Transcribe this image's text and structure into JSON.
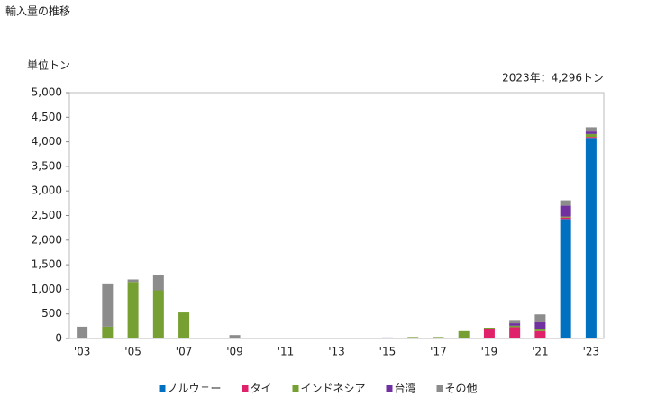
{
  "chart_data": {
    "type": "stacked_bar",
    "title": "輸入量の推移",
    "y_unit_label": "単位トン",
    "annotation": "2023年：4,296トン",
    "categories": [
      "'03",
      null,
      "'05",
      null,
      "'07",
      null,
      "'09",
      null,
      "'11",
      null,
      "'13",
      null,
      "'15",
      null,
      "'17",
      null,
      "'19",
      null,
      "'21",
      null,
      "'23"
    ],
    "series": [
      {
        "name": "ノルウェー",
        "color": "#0070c0",
        "values": [
          0,
          0,
          0,
          0,
          0,
          0,
          0,
          0,
          0,
          0,
          0,
          0,
          0,
          0,
          0,
          0,
          0,
          0,
          0,
          2430,
          4080
        ]
      },
      {
        "name": "タイ",
        "color": "#e0226a",
        "values": [
          0,
          0,
          0,
          0,
          0,
          0,
          0,
          0,
          0,
          0,
          0,
          0,
          0,
          0,
          0,
          0,
          200,
          230,
          150,
          30,
          20
        ]
      },
      {
        "name": "インドネシア",
        "color": "#77a033",
        "values": [
          0,
          240,
          1150,
          980,
          530,
          0,
          0,
          0,
          0,
          0,
          0,
          0,
          0,
          30,
          30,
          150,
          20,
          30,
          50,
          20,
          60
        ]
      },
      {
        "name": "台湾",
        "color": "#7030a0",
        "values": [
          0,
          0,
          0,
          0,
          0,
          0,
          0,
          0,
          0,
          0,
          0,
          0,
          20,
          0,
          0,
          0,
          0,
          50,
          130,
          220,
          50
        ]
      },
      {
        "name": "その他",
        "color": "#8c8c8c",
        "values": [
          240,
          880,
          50,
          320,
          0,
          0,
          70,
          0,
          0,
          0,
          0,
          0,
          0,
          0,
          0,
          0,
          0,
          50,
          160,
          110,
          86
        ]
      }
    ],
    "ylim": [
      0,
      5000
    ],
    "yticks": [
      0,
      500,
      {
        "value": 1000,
        "label": "1,000"
      },
      {
        "value": 1500,
        "label": "1,500"
      },
      {
        "value": 2000,
        "label": "2,000"
      },
      {
        "value": 2500,
        "label": "2,500"
      },
      {
        "value": 3000,
        "label": "3,000"
      },
      {
        "value": 3500,
        "label": "3,500"
      },
      {
        "value": 4000,
        "label": "4,000"
      },
      {
        "value": 4500,
        "label": "4,500"
      },
      {
        "value": 5000,
        "label": "5,000"
      }
    ]
  }
}
